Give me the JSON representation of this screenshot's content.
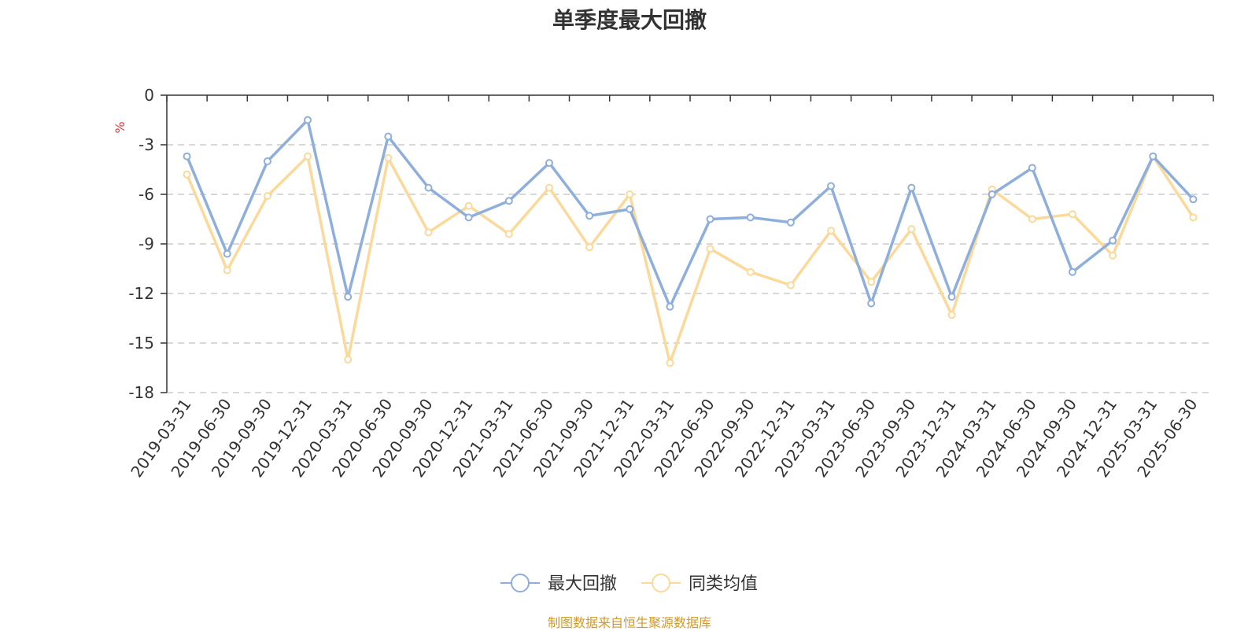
{
  "chart_data": {
    "type": "line",
    "title": "单季度最大回撤",
    "ylabel": "%",
    "xlabel": "",
    "ylim": [
      -18,
      0
    ],
    "yticks": [
      0,
      -3,
      -6,
      -9,
      -12,
      -15,
      -18
    ],
    "categories": [
      "2019-03-31",
      "2019-06-30",
      "2019-09-30",
      "2019-12-31",
      "2020-03-31",
      "2020-06-30",
      "2020-09-30",
      "2020-12-31",
      "2021-03-31",
      "2021-06-30",
      "2021-09-30",
      "2021-12-31",
      "2022-03-31",
      "2022-06-30",
      "2022-09-30",
      "2022-12-31",
      "2023-03-31",
      "2023-06-30",
      "2023-09-30",
      "2023-12-31",
      "2024-03-31",
      "2024-06-30",
      "2024-09-30",
      "2024-12-31",
      "2025-03-31",
      "2025-06-30"
    ],
    "series": [
      {
        "name": "最大回撤",
        "color": "#8eaedb",
        "values": [
          -3.7,
          -9.6,
          -4.0,
          -1.5,
          -12.2,
          -2.5,
          -5.6,
          -7.4,
          -6.4,
          -4.1,
          -7.3,
          -6.9,
          -12.8,
          -7.5,
          -7.4,
          -7.7,
          -5.5,
          -12.6,
          -5.6,
          -12.2,
          -6.0,
          -4.4,
          -10.7,
          -8.8,
          -3.7,
          -6.3
        ]
      },
      {
        "name": "同类均值",
        "color": "#fbd99a",
        "values": [
          -4.8,
          -10.6,
          -6.1,
          -3.7,
          -16.0,
          -3.8,
          -8.3,
          -6.7,
          -8.4,
          -5.6,
          -9.2,
          -6.0,
          -16.2,
          -9.3,
          -10.7,
          -11.5,
          -8.2,
          -11.3,
          -8.1,
          -13.3,
          -5.7,
          -7.5,
          -7.2,
          -9.7,
          -3.7,
          -7.4
        ]
      }
    ],
    "grid": true,
    "legend": "bottom-center",
    "source": "制图数据来自恒生聚源数据库"
  },
  "colors": {
    "axis": "#333333",
    "grid": "#cccccc",
    "ylabel": "#e8383d",
    "source": "#d19a28"
  }
}
